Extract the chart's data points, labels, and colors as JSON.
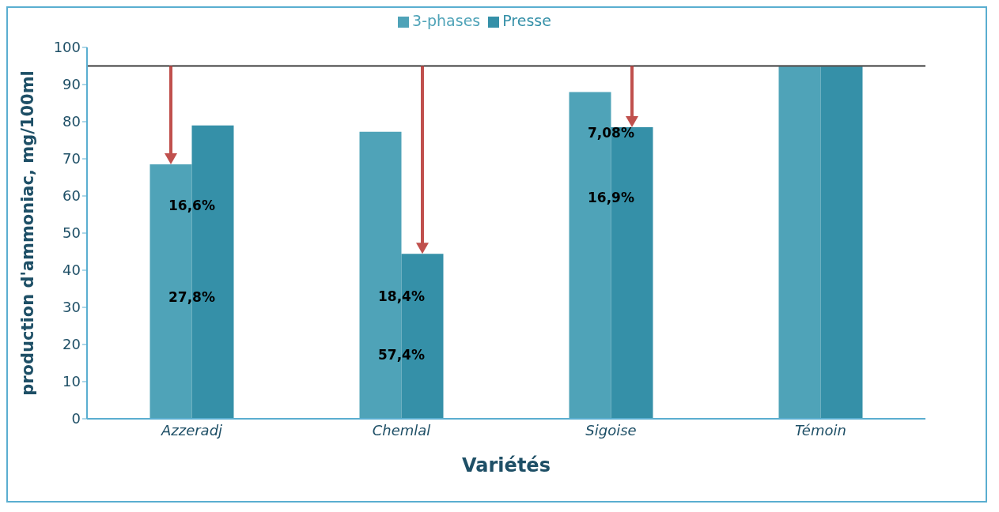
{
  "chart_data": {
    "type": "bar",
    "categories": [
      "Azzeradj",
      "Chemlal",
      "Sigoise",
      "Témoin"
    ],
    "series": [
      {
        "name": "3-phases",
        "color": "#4fa3b8",
        "values": [
          68.5,
          77.3,
          88,
          94.8
        ]
      },
      {
        "name": "Presse",
        "color": "#3590a8",
        "values": [
          79,
          44.4,
          78.5,
          94.8
        ]
      }
    ],
    "xlabel": "Variétés",
    "ylabel": "production d'ammoniac, mg/100ml",
    "ylim": [
      0,
      100
    ],
    "yticks": [
      0,
      10,
      20,
      30,
      40,
      50,
      60,
      70,
      80,
      90,
      100
    ],
    "ref_lines": [
      {
        "axis": "y",
        "value": 95,
        "color": "#000000"
      }
    ],
    "annotations": [
      {
        "text": "27,8%",
        "x": "Azzeradj",
        "y": 32.6
      },
      {
        "text": "16,6%",
        "x": "Azzeradj",
        "y": 57.3
      },
      {
        "text": "18,4%",
        "x": "Chemlal",
        "y": 32.8
      },
      {
        "text": "57,4%",
        "x": "Chemlal",
        "y": 17
      },
      {
        "text": "7,08%",
        "x": "Sigoise",
        "y": 76.8
      },
      {
        "text": "16,9%",
        "x": "Sigoise",
        "y": 59.4
      }
    ],
    "grid": false,
    "legend": "top"
  }
}
